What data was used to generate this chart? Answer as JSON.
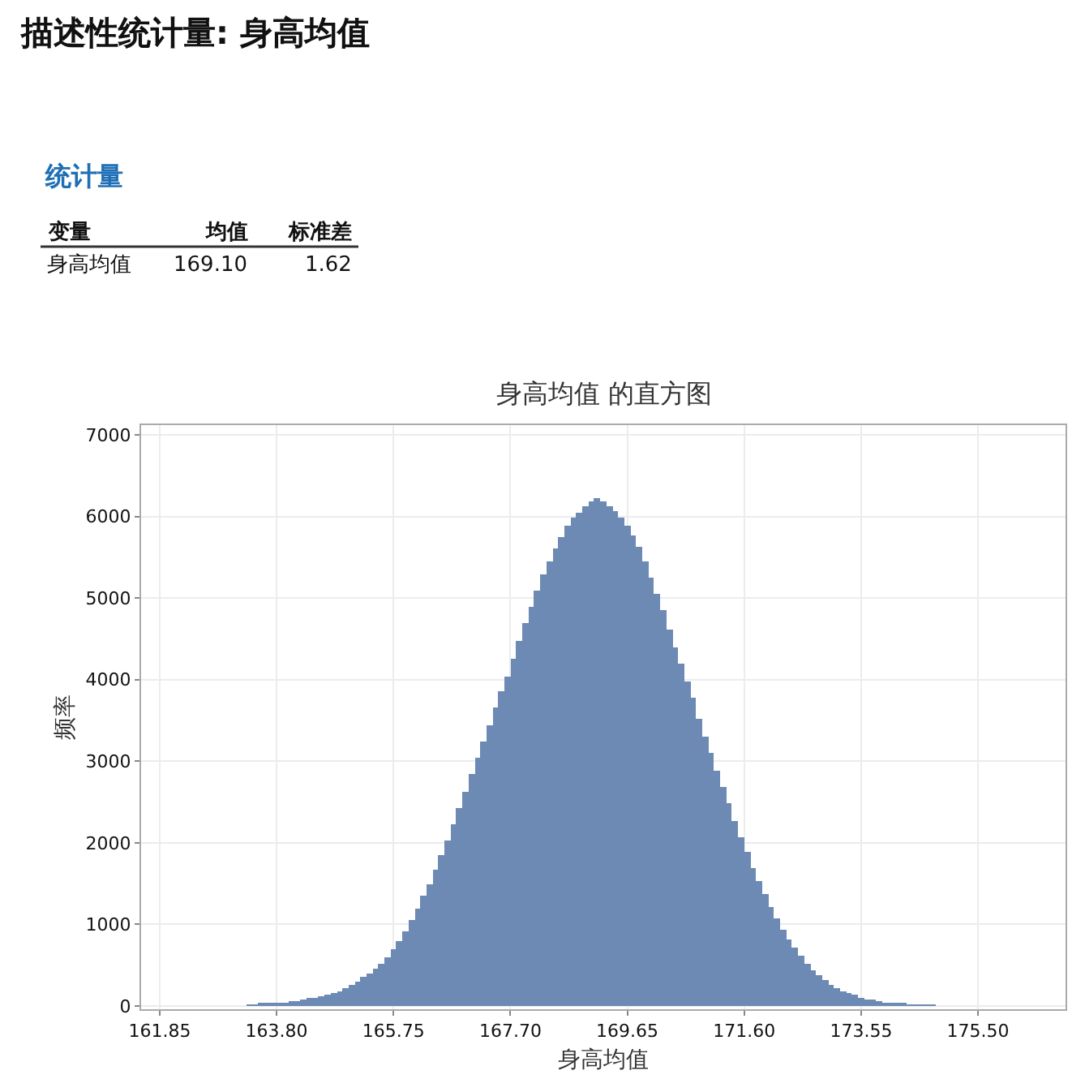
{
  "chart_data": [
    {
      "type": "other",
      "title": "描述性统计量: 身高均值",
      "subtitle": "统计量",
      "annotations": [
        "变量",
        "均值",
        "标准差",
        "身高均值",
        "169.10",
        "1.62"
      ]
    },
    {
      "type": "histogram",
      "title": "身高均值 的直方图",
      "xlabel": "身高均值",
      "ylabel": "频率",
      "color": "#6c8ab3",
      "bins": [
        163.3,
        163.4,
        163.5,
        163.6,
        163.7,
        163.8,
        163.9,
        164.0,
        164.1,
        164.2,
        164.3,
        164.4,
        164.5,
        164.6,
        164.7,
        164.8,
        164.9,
        165.0,
        165.1,
        165.2,
        165.3,
        165.4,
        165.5,
        165.6,
        165.7,
        165.8,
        165.9,
        166.0,
        166.1,
        166.2,
        166.3,
        166.4,
        166.5,
        166.6,
        166.7,
        166.8,
        166.9,
        167.0,
        167.1,
        167.2,
        167.3,
        167.4,
        167.5,
        167.6,
        167.7,
        167.8,
        167.9,
        168.0,
        168.1,
        168.2,
        168.3,
        168.4,
        168.5,
        168.6,
        168.7,
        168.8,
        168.9,
        169.0,
        169.1,
        169.2,
        169.3,
        169.4,
        169.5,
        169.6,
        169.7,
        169.8,
        169.9,
        170.0,
        170.1,
        170.2,
        170.3,
        170.4,
        170.5,
        170.6,
        170.7,
        170.8,
        170.9,
        171.0,
        171.1,
        171.2,
        171.3,
        171.4,
        171.5,
        171.6,
        171.7,
        171.8,
        171.9,
        172.0,
        172.1,
        172.2,
        172.3,
        172.4,
        172.5,
        172.6,
        172.7,
        172.8,
        172.9,
        173.0,
        173.1,
        173.2,
        173.3,
        173.4,
        173.5,
        173.6,
        173.7,
        173.8,
        173.9,
        174.0,
        174.1,
        174.2,
        174.3,
        174.4,
        174.5,
        174.6,
        174.7,
        174.8,
        174.9
      ],
      "values": [
        10,
        10,
        20,
        20,
        30,
        30,
        40,
        50,
        60,
        70,
        90,
        100,
        120,
        140,
        160,
        180,
        215,
        255,
        300,
        350,
        400,
        450,
        520,
        600,
        690,
        800,
        920,
        1050,
        1200,
        1350,
        1500,
        1680,
        1850,
        2030,
        2220,
        2420,
        2620,
        2850,
        3050,
        3250,
        3450,
        3650,
        3850,
        4030,
        4250,
        4480,
        4700,
        4900,
        5100,
        5300,
        5450,
        5600,
        5750,
        5880,
        5980,
        6050,
        6120,
        6180,
        6220,
        6180,
        6130,
        6060,
        5980,
        5880,
        5760,
        5620,
        5450,
        5250,
        5050,
        4850,
        4620,
        4400,
        4200,
        3980,
        3770,
        3530,
        3300,
        3100,
        2880,
        2680,
        2480,
        2270,
        2060,
        1880,
        1700,
        1530,
        1370,
        1220,
        1080,
        940,
        820,
        710,
        610,
        520,
        440,
        370,
        310,
        260,
        215,
        180,
        150,
        130,
        100,
        80,
        70,
        50,
        40,
        30,
        30,
        20,
        10,
        10,
        10,
        10,
        10,
        0
      ],
      "xlim": [
        161.54,
        176.96
      ],
      "xticks": [
        161.85,
        {
          "value": 163.8,
          "label": "163.80"
        },
        {
          "value": 165.75,
          "label": "165.75"
        },
        {
          "value": 167.7,
          "label": "167.70"
        },
        169.65,
        {
          "value": 171.6,
          "label": "171.60"
        },
        173.55,
        {
          "value": 175.5,
          "label": "175.50"
        }
      ],
      "ylim": [
        -40,
        7120
      ],
      "yticks": [
        0,
        1000,
        2000,
        3000,
        4000,
        5000,
        6000,
        7000
      ],
      "grid": true
    }
  ]
}
